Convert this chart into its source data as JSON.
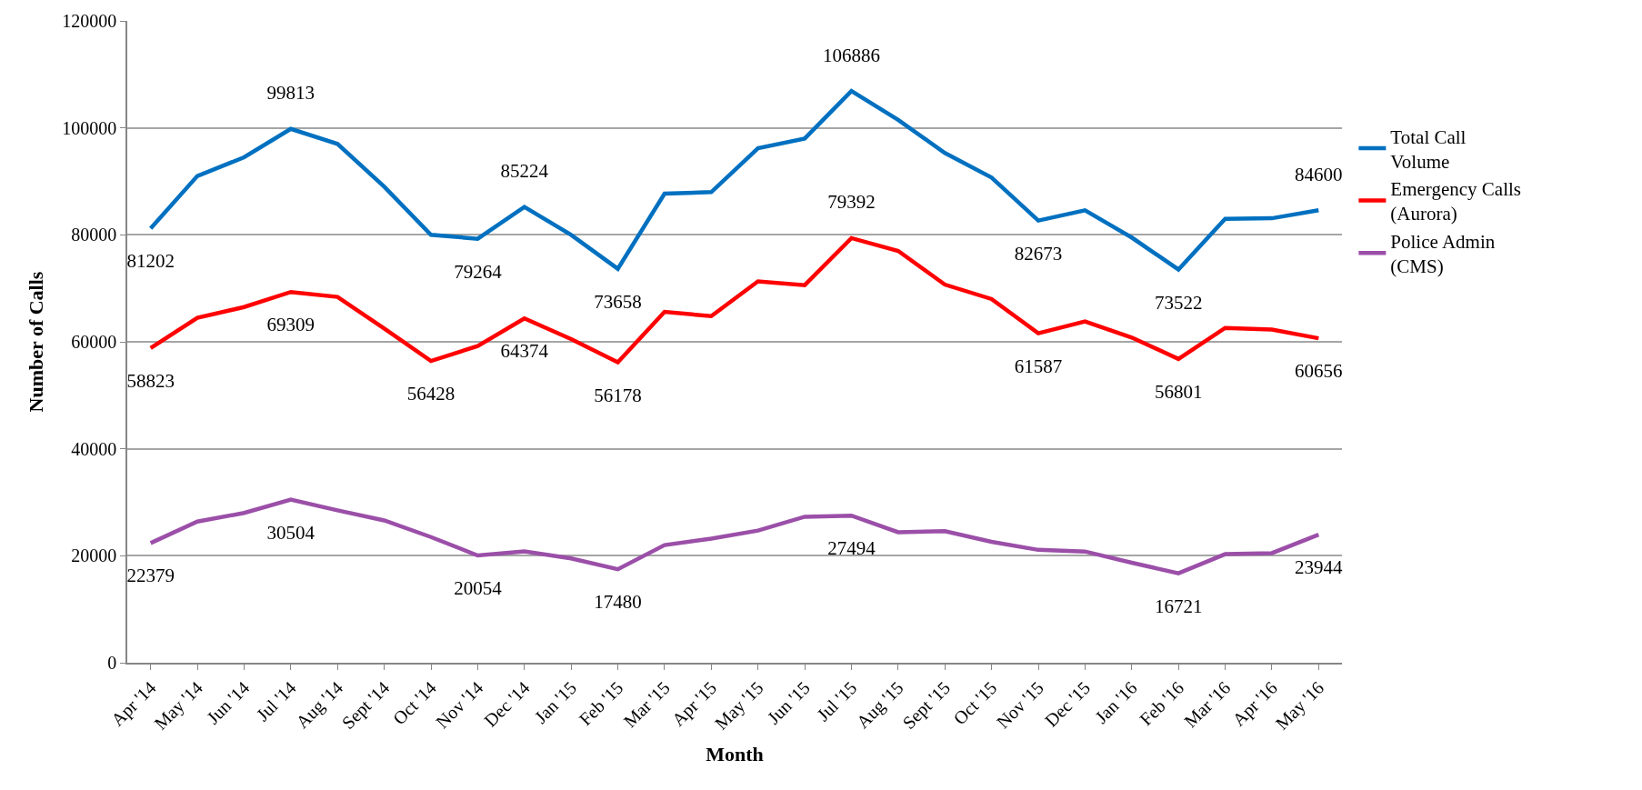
{
  "chart_data": {
    "type": "line",
    "xlabel": "Month",
    "ylabel": "Number of Calls",
    "categories": [
      "Apr '14",
      "May '14",
      "Jun '14",
      "Jul '14",
      "Aug '14",
      "Sept '14",
      "Oct '14",
      "Nov '14",
      "Dec '14",
      "Jan '15",
      "Feb '15",
      "Mar '15",
      "Apr '15",
      "May '15",
      "Jun '15",
      "Jul '15",
      "Aug '15",
      "Sept '15",
      "Oct '15",
      "Nov '15",
      "Dec '15",
      "Jan '16",
      "Feb '16",
      "Mar '16",
      "Apr '16",
      "May '16"
    ],
    "series": [
      {
        "name": "Total Call Volume",
        "color": "#0070c0",
        "values": [
          81202,
          91000,
          94500,
          99813,
          97000,
          89000,
          80000,
          79264,
          85224,
          80000,
          73658,
          87700,
          88000,
          96200,
          98000,
          106886,
          101500,
          95300,
          90700,
          82673,
          84600,
          79500,
          73522,
          83000,
          83100,
          84600
        ],
        "value_labels": [
          "81202",
          null,
          null,
          "99813",
          null,
          null,
          null,
          "79264",
          "85224",
          null,
          "73658",
          null,
          null,
          null,
          null,
          "106886",
          null,
          null,
          null,
          "82673",
          null,
          null,
          "73522",
          null,
          null,
          "84600"
        ]
      },
      {
        "name": "Emergency Calls (Aurora)",
        "color": "#ff0000",
        "values": [
          58823,
          64500,
          66500,
          69309,
          68400,
          62500,
          56428,
          59200,
          64374,
          60500,
          56178,
          65600,
          64800,
          71300,
          70600,
          79392,
          77000,
          70700,
          68000,
          61587,
          63800,
          60800,
          56801,
          62600,
          62300,
          60656
        ],
        "value_labels": [
          "58823",
          null,
          null,
          "69309",
          null,
          null,
          "56428",
          null,
          "64374",
          null,
          "56178",
          null,
          null,
          null,
          null,
          "79392",
          null,
          null,
          null,
          "61587",
          null,
          null,
          "56801",
          null,
          null,
          "60656"
        ]
      },
      {
        "name": "Police Admin (CMS)",
        "color": "#9b4fa8",
        "values": [
          22379,
          26400,
          28000,
          30504,
          28500,
          26600,
          23500,
          20054,
          20800,
          19500,
          17480,
          22000,
          23200,
          24700,
          27300,
          27494,
          24400,
          24600,
          22600,
          21100,
          20800,
          18700,
          16721,
          20300,
          20500,
          23944
        ],
        "value_labels": [
          "22379",
          null,
          null,
          "30504",
          null,
          null,
          null,
          "20054",
          null,
          null,
          "17480",
          null,
          null,
          null,
          null,
          "27494",
          null,
          null,
          null,
          null,
          null,
          null,
          "16721",
          null,
          null,
          "23944"
        ]
      }
    ],
    "ylim": [
      0,
      120000
    ],
    "yticks": [
      0,
      20000,
      40000,
      60000,
      80000,
      100000,
      120000
    ],
    "grid": "y",
    "legend": "right",
    "marker": "none",
    "line_style": "solid"
  }
}
